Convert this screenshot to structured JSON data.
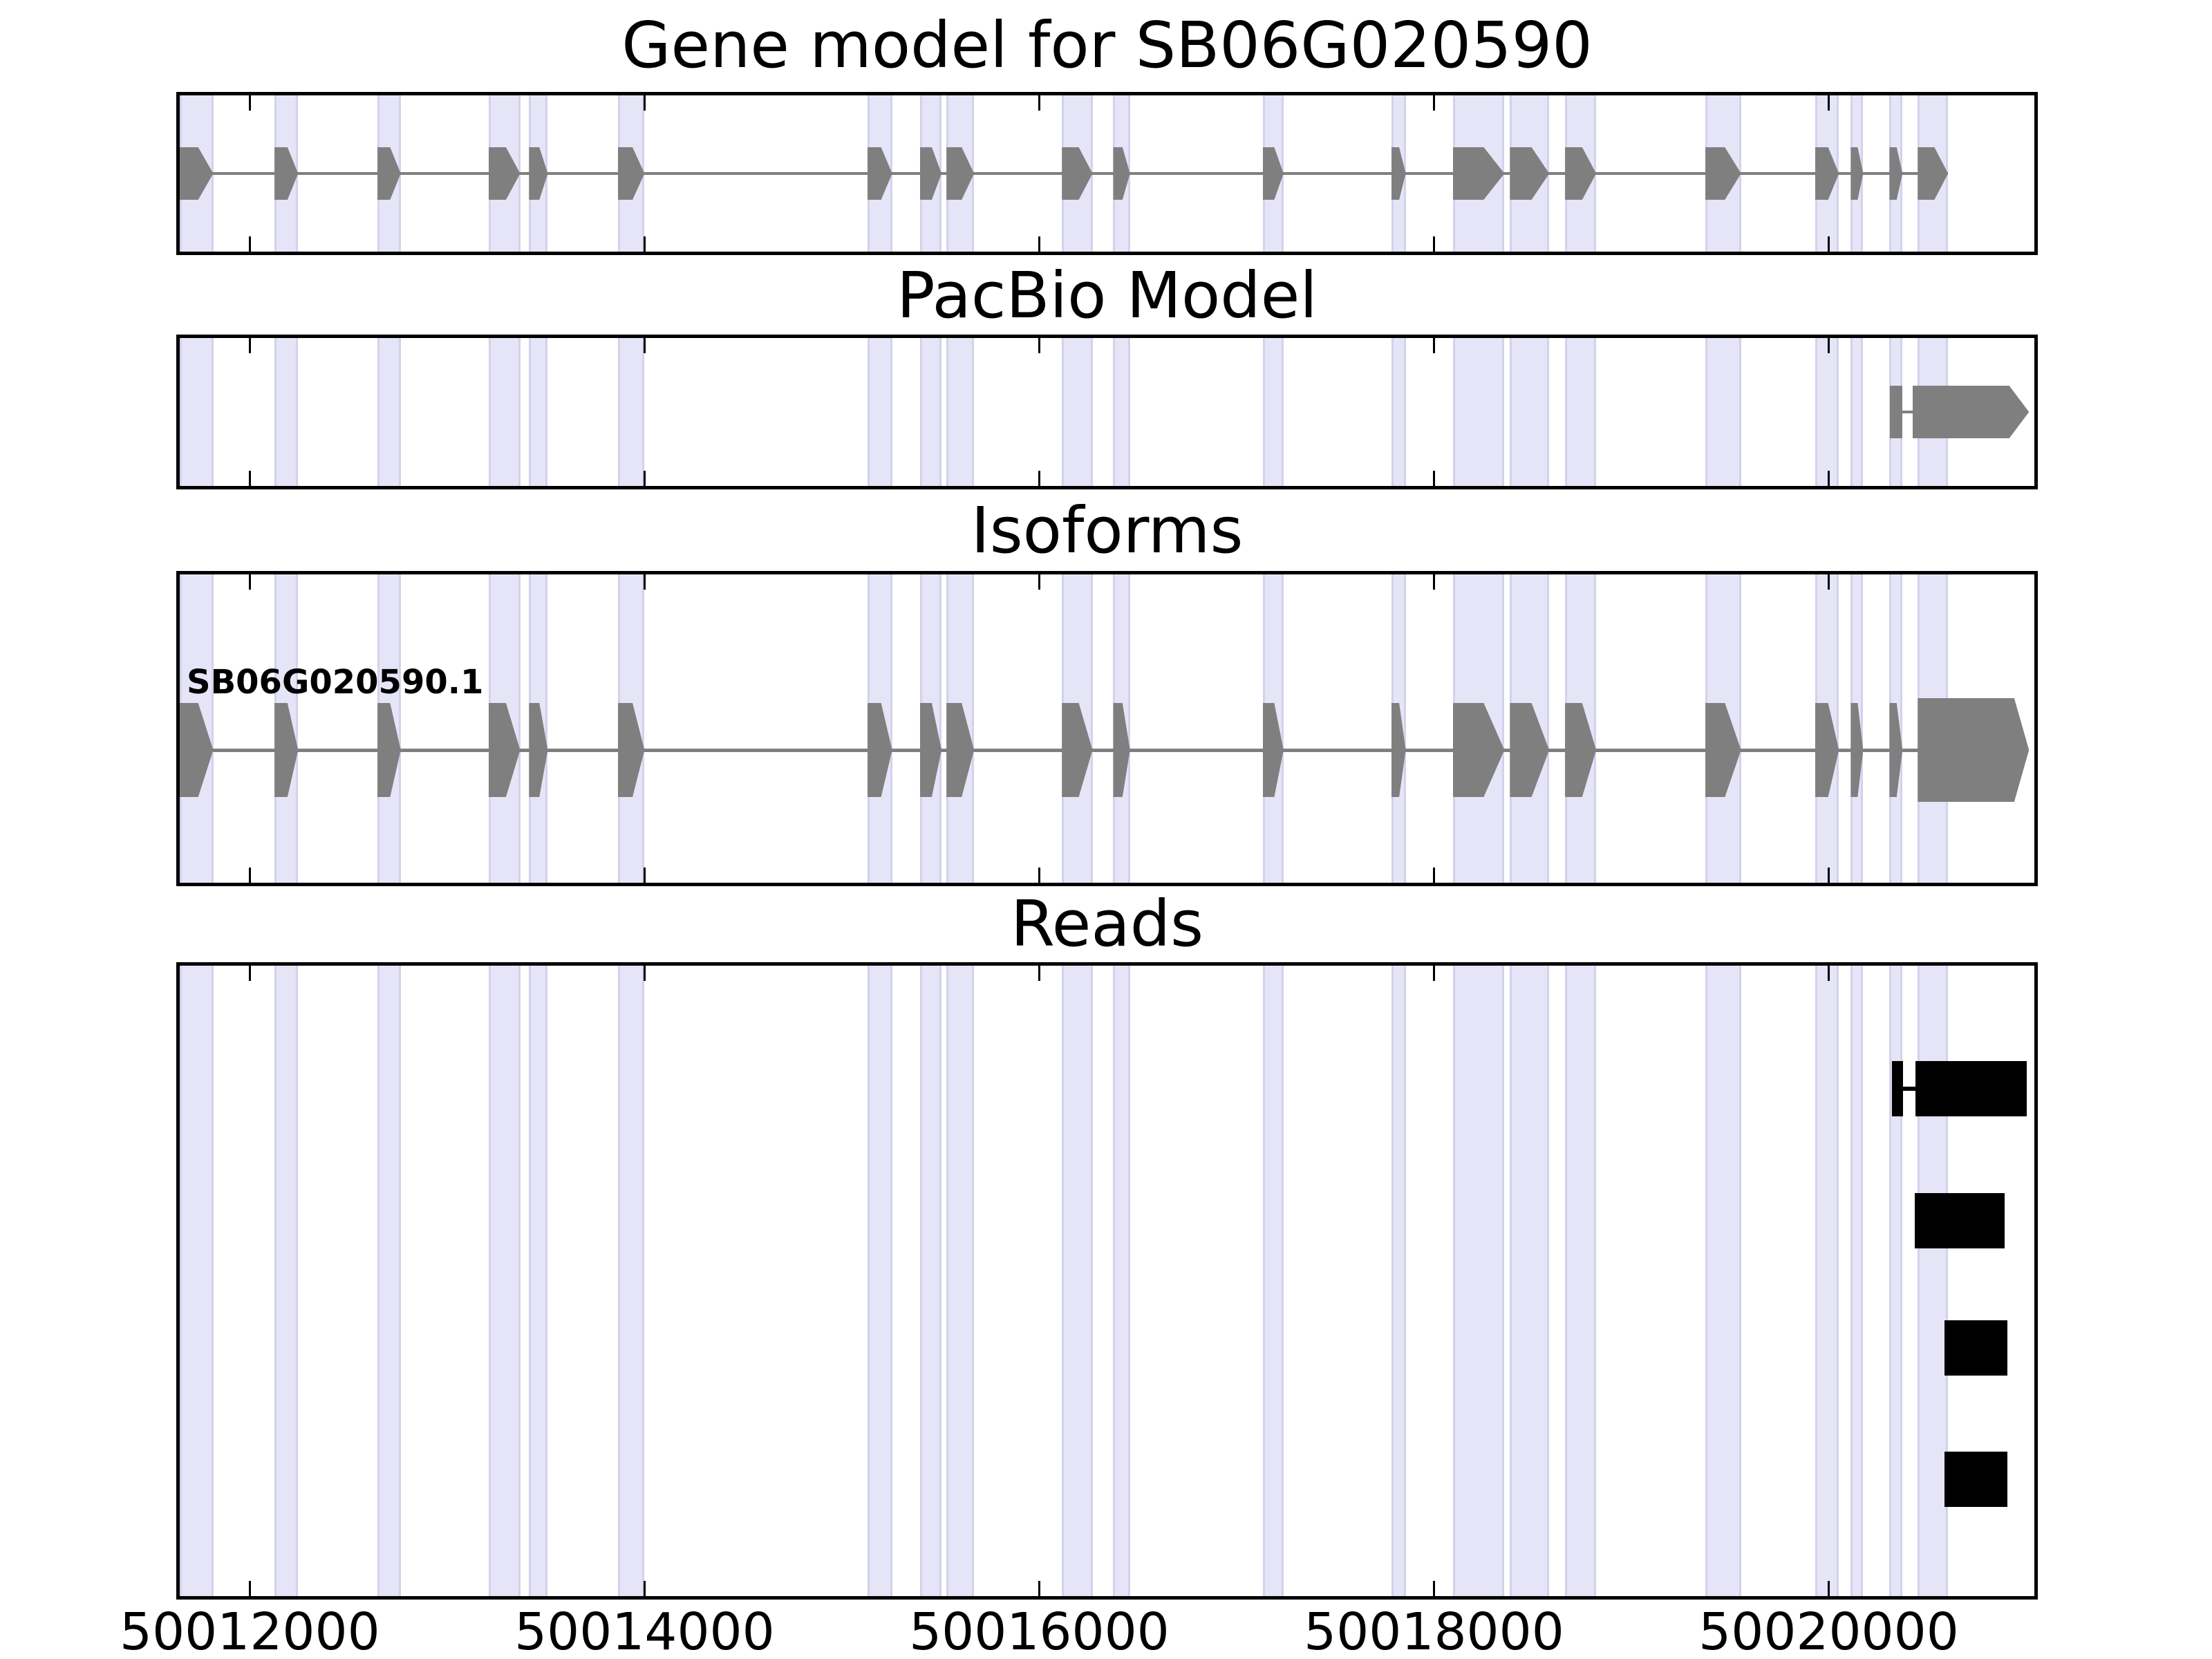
{
  "figure": {
    "title_gene": "Gene model for SB06G020590",
    "title_pacbio": "PacBio Model",
    "title_isoforms": "Isoforms",
    "title_reads": "Reads",
    "isoform_label": "SB06G020590.1"
  },
  "chart_data": {
    "type": "gene-model-tracks",
    "tracks": [
      "Gene model for SB06G020590",
      "PacBio Model",
      "Isoforms",
      "Reads"
    ],
    "strand_direction": "right",
    "x_axis": {
      "range": [
        50011645,
        50021042
      ],
      "ticks": [
        {
          "value": 50012000,
          "label": "50012000"
        },
        {
          "value": 50014000,
          "label": "50014000"
        },
        {
          "value": 50016000,
          "label": "50016000"
        },
        {
          "value": 50018000,
          "label": "50018000"
        },
        {
          "value": 50020000,
          "label": "50020000"
        }
      ]
    },
    "gene_exons": [
      [
        50011645,
        50011815
      ],
      [
        50012125,
        50012245
      ],
      [
        50012645,
        50012765
      ],
      [
        50013210,
        50013370
      ],
      [
        50013415,
        50013510
      ],
      [
        50013865,
        50014000
      ],
      [
        50015130,
        50015255
      ],
      [
        50015395,
        50015505
      ],
      [
        50015530,
        50015670
      ],
      [
        50016115,
        50016270
      ],
      [
        50016375,
        50016460
      ],
      [
        50017133,
        50017238
      ],
      [
        50017783,
        50017857
      ],
      [
        50018095,
        50018357
      ],
      [
        50018385,
        50018584
      ],
      [
        50018664,
        50018822
      ],
      [
        50019374,
        50019556
      ],
      [
        50019930,
        50020052
      ],
      [
        50020112,
        50020175
      ],
      [
        50020308,
        50020374
      ],
      [
        50020451,
        50020605
      ]
    ],
    "highlight_stripes": "same positions as gene_exons",
    "pacbio_model": {
      "first_exon": [
        50020310,
        50020372
      ],
      "arrow_body": [
        50020425,
        50020915
      ],
      "arrow_tip_end": 50021015
    },
    "isoform": {
      "name": "SB06G020590.1",
      "shared_exons": "gene_exons 1-20",
      "final_exon_body": [
        50020451,
        50020940
      ],
      "final_exon_tip_end": 50021015
    },
    "reads": [
      {
        "segments": [
          [
            50020320,
            50020375
          ],
          [
            50020440,
            50021005
          ]
        ],
        "connector": [
          50020375,
          50020440
        ]
      },
      {
        "segments": [
          [
            50020435,
            50020890
          ]
        ]
      },
      {
        "segments": [
          [
            50020585,
            50020905
          ]
        ]
      },
      {
        "segments": [
          [
            50020585,
            50020905
          ]
        ]
      }
    ],
    "colors": {
      "feature_gray": "#7f7f7f",
      "read_black": "#000000",
      "stripe_fill": "#e5e5f7",
      "stripe_edge": "#d2d2ec",
      "frame": "#000000",
      "background": "#ffffff"
    }
  }
}
